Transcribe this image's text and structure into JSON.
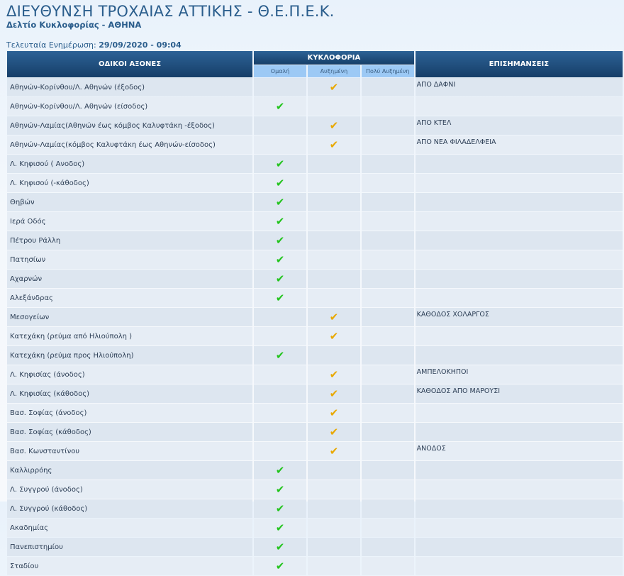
{
  "header": {
    "title": "ΔΙΕΥΘΥΝΣΗ ΤΡΟΧΑΙΑΣ ΑΤΤΙΚΗΣ - Θ.Ε.Π.Ε.Κ.",
    "subtitle": "Δελτίο Κυκλοφορίας - ΑΘΗΝΑ",
    "updated_label": "Τελευταία Ενημέρωση:",
    "updated_value": "29/09/2020 - 09:04"
  },
  "table": {
    "col_roads": "ΟΔΙΚΟΙ ΑΞΟΝΕΣ",
    "col_traffic": "ΚΥΚΛΟΦΟΡΙΑ",
    "col_notes": "ΕΠΙΣΗΜΑΝΣΕΙΣ",
    "levels": [
      "Ομαλή",
      "Αυξημένη",
      "Πολύ Αυξημένη"
    ],
    "colors": {
      "normal": "#22c41c",
      "increased": "#e8a800"
    },
    "rows": [
      {
        "road": "Αθηνών-Κορίνθου/Λ. Αθηνών (έξοδος)",
        "level": 1,
        "note": "ΑΠΟ ΔΑΦΝΙ"
      },
      {
        "road": "Αθηνών-Κορίνθου/Λ. Αθηνών (είσοδος)",
        "level": 0,
        "note": ""
      },
      {
        "road": "Αθηνών-Λαμίας(Αθηνών έως κόμβος Καλυφτάκη -έξοδος)",
        "level": 1,
        "note": "ΑΠΟ ΚΤΕΛ"
      },
      {
        "road": "Αθηνών-Λαμίας(κόμβος Καλυφτάκη έως Αθηνών-είσοδος)",
        "level": 1,
        "note": "ΑΠΟ ΝΕΑ ΦΙΛΑΔΕΛΦΕΙΑ"
      },
      {
        "road": "Λ. Κηφισού ( Ανοδος)",
        "level": 0,
        "note": ""
      },
      {
        "road": "Λ. Κηφισού (-κάθοδος)",
        "level": 0,
        "note": ""
      },
      {
        "road": "Θηβών",
        "level": 0,
        "note": ""
      },
      {
        "road": "Ιερά Οδός",
        "level": 0,
        "note": ""
      },
      {
        "road": "Πέτρου Ράλλη",
        "level": 0,
        "note": ""
      },
      {
        "road": "Πατησίων",
        "level": 0,
        "note": ""
      },
      {
        "road": "Αχαρνών",
        "level": 0,
        "note": ""
      },
      {
        "road": "Αλεξάνδρας",
        "level": 0,
        "note": ""
      },
      {
        "road": "Μεσογείων",
        "level": 1,
        "note": "ΚΑΘΟΔΟΣ ΧΟΛΑΡΓΟΣ"
      },
      {
        "road": "Κατεχάκη (ρεύμα από Ηλιούπολη )",
        "level": 1,
        "note": ""
      },
      {
        "road": "Κατεχάκη (ρεύμα προς Ηλιούπολη)",
        "level": 0,
        "note": ""
      },
      {
        "road": "Λ. Κηφισίας (άνοδος)",
        "level": 1,
        "note": "ΑΜΠΕΛΟΚΗΠΟΙ"
      },
      {
        "road": "Λ. Κηφισίας (κάθοδος)",
        "level": 1,
        "note": "ΚΑΘΟΔΟΣ ΑΠΟ ΜΑΡΟΥΣΙ"
      },
      {
        "road": "Βασ. Σοφίας (άνοδος)",
        "level": 1,
        "note": ""
      },
      {
        "road": "Βασ. Σοφίας (κάθοδος)",
        "level": 1,
        "note": ""
      },
      {
        "road": "Βασ. Κωνσταντίνου",
        "level": 1,
        "note": "ΑΝΟΔΟΣ"
      },
      {
        "road": "Καλλιρρόης",
        "level": 0,
        "note": ""
      },
      {
        "road": "Λ. Συγγρού (άνοδος)",
        "level": 0,
        "note": ""
      },
      {
        "road": "Λ. Συγγρού (κάθοδος)",
        "level": 0,
        "note": ""
      },
      {
        "road": "Ακαδημίας",
        "level": 0,
        "note": ""
      },
      {
        "road": "Πανεπιστημίου",
        "level": 0,
        "note": ""
      },
      {
        "road": "Σταδίου",
        "level": 0,
        "note": ""
      }
    ]
  }
}
